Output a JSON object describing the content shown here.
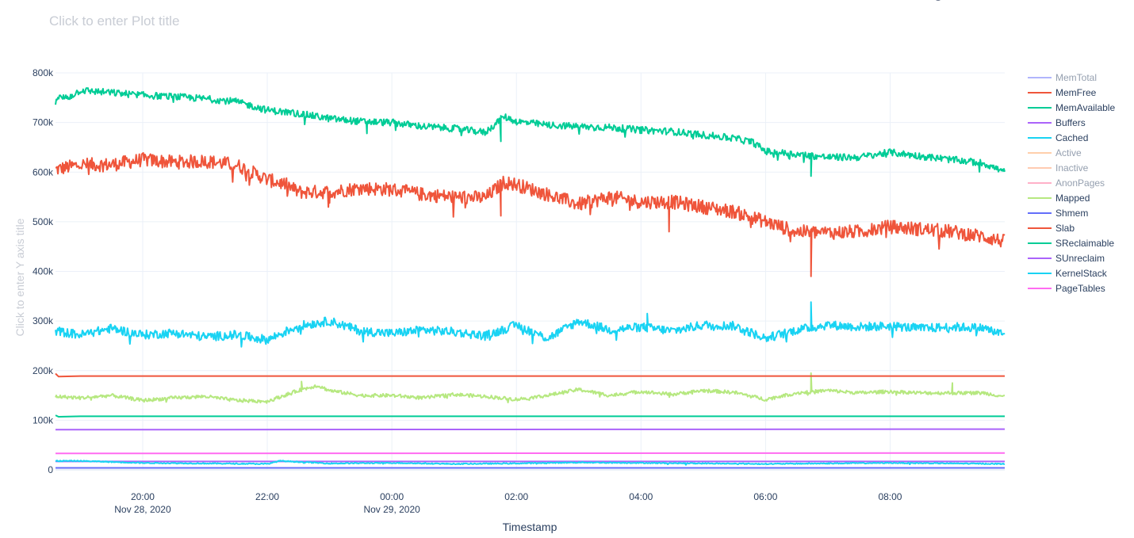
{
  "title_placeholder": "Click to enter Plot title",
  "modebar": {
    "icons": [
      "camera-icon",
      "zoom-icon",
      "pan-icon",
      "box-select-icon",
      "lasso-icon",
      "zoom-in-icon",
      "zoom-out-icon",
      "autoscale-icon",
      "reset-axes-icon",
      "spike-lines-icon",
      "hover-closest-icon",
      "hover-compare-icon",
      "plotly-logo-icon"
    ]
  },
  "chart_data": {
    "type": "line",
    "title": "Click to enter Plot title",
    "xlabel": "Timestamp",
    "ylabel": "Click to enter Y axis title",
    "xlim": [
      18.6,
      33.84
    ],
    "ylim": [
      0,
      800000
    ],
    "grid": true,
    "legend_position": "right",
    "x_ticks": [
      {
        "value": 20,
        "label": "20:00",
        "sublabel": "Nov 28, 2020"
      },
      {
        "value": 22,
        "label": "22:00",
        "sublabel": ""
      },
      {
        "value": 24,
        "label": "00:00",
        "sublabel": "Nov 29, 2020"
      },
      {
        "value": 26,
        "label": "02:00",
        "sublabel": ""
      },
      {
        "value": 28,
        "label": "04:00",
        "sublabel": ""
      },
      {
        "value": 30,
        "label": "06:00",
        "sublabel": ""
      },
      {
        "value": 32,
        "label": "08:00",
        "sublabel": ""
      }
    ],
    "y_ticks": [
      {
        "value": 0,
        "label": "0"
      },
      {
        "value": 100000,
        "label": "100k"
      },
      {
        "value": 200000,
        "label": "200k"
      },
      {
        "value": 300000,
        "label": "300k"
      },
      {
        "value": 400000,
        "label": "400k"
      },
      {
        "value": 500000,
        "label": "500k"
      },
      {
        "value": 600000,
        "label": "600k"
      },
      {
        "value": 700000,
        "label": "700k"
      },
      {
        "value": 800000,
        "label": "800k"
      }
    ],
    "series": [
      {
        "name": "MemTotal",
        "color": "#636efa",
        "visible": false,
        "x": [],
        "y": []
      },
      {
        "name": "MemFree",
        "color": "#EF553B",
        "visible": true,
        "noise": 14000,
        "x": [
          18.6,
          19.0,
          19.5,
          20.0,
          20.5,
          21.0,
          21.5,
          22.0,
          22.3,
          22.5,
          23.0,
          23.5,
          24.0,
          24.5,
          25.0,
          25.5,
          25.8,
          26.0,
          26.5,
          27.0,
          27.5,
          28.0,
          28.5,
          29.0,
          29.5,
          30.0,
          30.5,
          31.0,
          31.5,
          32.0,
          32.5,
          33.0,
          33.5,
          33.84
        ],
        "y": [
          605000,
          615000,
          615000,
          625000,
          620000,
          622000,
          615000,
          585000,
          575000,
          560000,
          560000,
          568000,
          565000,
          555000,
          550000,
          548000,
          580000,
          575000,
          555000,
          535000,
          550000,
          540000,
          540000,
          530000,
          520000,
          500000,
          480000,
          478000,
          480000,
          490000,
          485000,
          480000,
          470000,
          460000
        ],
        "spikes": [
          [
            30.73,
            390000
          ],
          [
            25.75,
            512000
          ],
          [
            28.45,
            480000
          ],
          [
            23.0,
            538000
          ]
        ]
      },
      {
        "name": "MemAvailable",
        "color": "#00cc96",
        "visible": true,
        "noise": 7000,
        "x": [
          18.6,
          18.8,
          19.0,
          19.5,
          20.0,
          20.5,
          21.0,
          21.5,
          22.0,
          22.5,
          23.0,
          23.5,
          24.0,
          24.5,
          25.0,
          25.5,
          25.8,
          26.0,
          26.5,
          27.0,
          27.5,
          28.0,
          28.5,
          29.0,
          29.5,
          29.8,
          30.0,
          30.5,
          31.0,
          31.5,
          32.0,
          32.5,
          33.0,
          33.5,
          33.84
        ],
        "y": [
          750000,
          750000,
          765000,
          760000,
          755000,
          752000,
          748000,
          742000,
          725000,
          718000,
          708000,
          702000,
          700000,
          692000,
          688000,
          680000,
          712000,
          702000,
          695000,
          692000,
          690000,
          685000,
          682000,
          675000,
          668000,
          660000,
          642000,
          636000,
          630000,
          630000,
          640000,
          632000,
          625000,
          618000,
          600000
        ],
        "spikes": [
          [
            30.73,
            592000
          ],
          [
            25.75,
            662000
          ],
          [
            23.6,
            678000
          ]
        ]
      },
      {
        "name": "Buffers",
        "color": "#ab63fa",
        "visible": true,
        "noise": 0,
        "x": [
          18.6,
          33.84
        ],
        "y": [
          81000,
          82000
        ]
      },
      {
        "name": "Cached",
        "color": "#19d3f3",
        "visible": true,
        "noise": 9000,
        "x": [
          18.6,
          19.0,
          19.5,
          20.0,
          20.5,
          21.0,
          21.5,
          22.0,
          22.5,
          23.0,
          23.5,
          24.0,
          24.5,
          25.0,
          25.5,
          26.0,
          26.5,
          27.0,
          27.5,
          28.0,
          28.5,
          29.0,
          29.5,
          30.0,
          30.5,
          31.0,
          31.5,
          32.0,
          32.5,
          33.0,
          33.5,
          33.84
        ],
        "y": [
          280000,
          272000,
          285000,
          272000,
          276000,
          268000,
          272000,
          262000,
          290000,
          300000,
          280000,
          275000,
          282000,
          278000,
          270000,
          292000,
          265000,
          300000,
          282000,
          288000,
          280000,
          292000,
          290000,
          265000,
          282000,
          292000,
          288000,
          290000,
          285000,
          288000,
          286000,
          272000
        ],
        "spikes": [
          [
            30.73,
            338000
          ],
          [
            28.1,
            315000
          ]
        ]
      },
      {
        "name": "Active",
        "color": "#FFA15A",
        "visible": false,
        "x": [],
        "y": []
      },
      {
        "name": "Inactive",
        "color": "#FF9966",
        "visible": false,
        "x": [],
        "y": []
      },
      {
        "name": "AnonPages",
        "color": "#FF6692",
        "visible": false,
        "x": [],
        "y": []
      },
      {
        "name": "Mapped",
        "color": "#B6E880",
        "visible": true,
        "noise": 3500,
        "x": [
          18.6,
          19.0,
          19.5,
          20.0,
          20.5,
          21.0,
          21.5,
          22.0,
          22.5,
          22.8,
          23.0,
          23.5,
          24.0,
          24.5,
          25.0,
          25.5,
          26.0,
          26.5,
          27.0,
          27.5,
          28.0,
          28.5,
          29.0,
          29.5,
          30.0,
          30.5,
          31.0,
          31.5,
          32.0,
          32.5,
          33.0,
          33.5,
          33.84
        ],
        "y": [
          148000,
          145000,
          150000,
          140000,
          145000,
          148000,
          140000,
          138000,
          160000,
          170000,
          160000,
          150000,
          150000,
          145000,
          152000,
          148000,
          142000,
          150000,
          162000,
          150000,
          158000,
          152000,
          160000,
          156000,
          142000,
          155000,
          160000,
          155000,
          158000,
          155000,
          155000,
          155000,
          148000
        ],
        "spikes": [
          [
            30.73,
            195000
          ],
          [
            22.55,
            178000
          ],
          [
            33.0,
            175000
          ]
        ]
      },
      {
        "name": "Shmem",
        "color": "#636efa",
        "visible": true,
        "noise": 0,
        "x": [
          18.6,
          33.84
        ],
        "y": [
          4000,
          4000
        ]
      },
      {
        "name": "Slab",
        "color": "#EF553B",
        "visible": true,
        "noise": 0,
        "x": [
          18.6,
          18.65,
          19.0,
          33.84
        ],
        "y": [
          194000,
          188000,
          189000,
          189000
        ]
      },
      {
        "name": "SReclaimable",
        "color": "#00cc96",
        "visible": true,
        "noise": 0,
        "x": [
          18.6,
          18.65,
          19.0,
          33.84
        ],
        "y": [
          110000,
          107000,
          108000,
          108000
        ]
      },
      {
        "name": "SUnreclaim",
        "color": "#ab63fa",
        "visible": true,
        "noise": 0,
        "x": [
          18.6,
          33.84
        ],
        "y": [
          17000,
          17000
        ]
      },
      {
        "name": "KernelStack",
        "color": "#19d3f3",
        "visible": true,
        "noise": 1000,
        "x": [
          18.6,
          19.0,
          20.0,
          21.0,
          22.0,
          22.2,
          23.0,
          24.0,
          25.0,
          26.0,
          27.0,
          28.0,
          29.0,
          30.0,
          31.0,
          32.0,
          33.0,
          33.84
        ],
        "y": [
          18000,
          18000,
          14000,
          13000,
          12000,
          18000,
          13000,
          14000,
          12000,
          13000,
          15000,
          14000,
          13000,
          12000,
          13000,
          14000,
          13000,
          12000
        ]
      },
      {
        "name": "PageTables",
        "color": "#FF6CF1",
        "visible": true,
        "noise": 0,
        "x": [
          18.6,
          33.84
        ],
        "y": [
          33000,
          34000
        ]
      }
    ]
  }
}
